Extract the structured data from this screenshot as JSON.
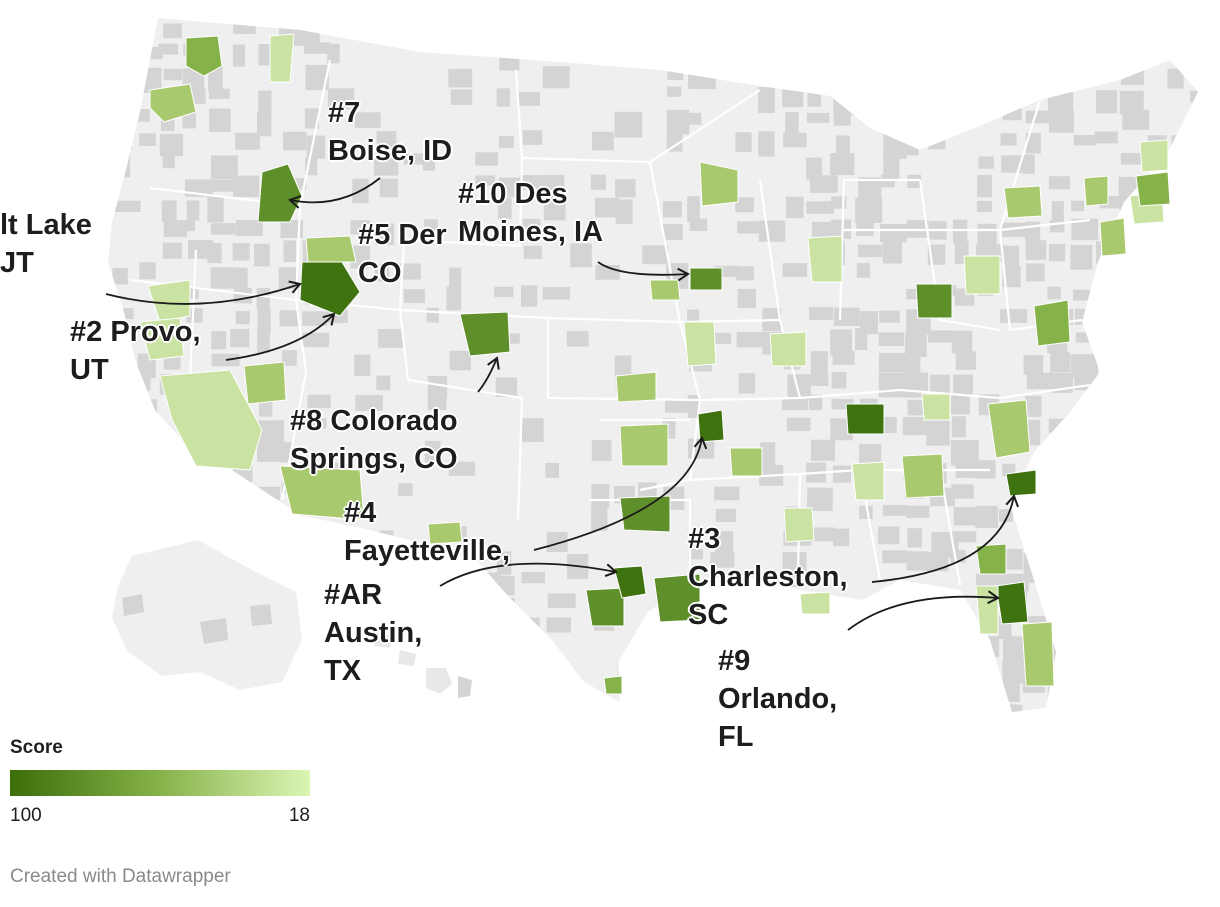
{
  "legend": {
    "title": "Score",
    "min_label": "100",
    "max_label": "18",
    "color_high": "#3c6e0a",
    "color_mid": "#86b24a",
    "color_low": "#dbf5b4"
  },
  "credit": "Created with Datawrapper",
  "colors": {
    "land": "#efefef",
    "county_gray": "#d4d4d4",
    "border": "#ffffff",
    "arrow": "#1a1a1a"
  },
  "annotations": [
    {
      "id": "salt-lake",
      "lines": [
        "lt Lake",
        "JT"
      ]
    },
    {
      "id": "provo",
      "lines": [
        "#2 Provo,",
        "UT"
      ]
    },
    {
      "id": "boise",
      "lines": [
        "#7",
        "Boise, ID"
      ]
    },
    {
      "id": "denver",
      "lines": [
        "#5 Der",
        "CO"
      ]
    },
    {
      "id": "des-moines",
      "lines": [
        "#10 Des",
        "Moines, IA"
      ]
    },
    {
      "id": "colorado-springs",
      "lines": [
        "#8 Colorado",
        "Springs, CO"
      ]
    },
    {
      "id": "fayetteville",
      "lines": [
        "#4",
        "Fayetteville,"
      ]
    },
    {
      "id": "austin",
      "lines": [
        "#AR",
        "Austin,",
        "TX"
      ]
    },
    {
      "id": "charleston",
      "lines": [
        "#3",
        "Charleston,",
        "SC"
      ]
    },
    {
      "id": "orlando",
      "lines": [
        "#9",
        "Orlando,",
        "FL"
      ]
    }
  ]
}
